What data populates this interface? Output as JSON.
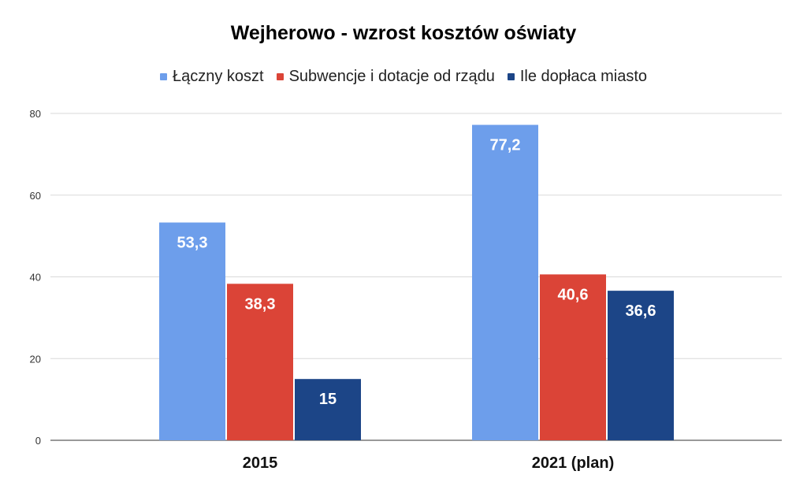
{
  "chart_data": {
    "type": "bar",
    "title": "Wejherowo - wzrost kosztów oświaty",
    "categories": [
      "2015",
      "2021 (plan)"
    ],
    "series": [
      {
        "name": "Łączny koszt",
        "values": [
          53.3,
          77.2
        ],
        "labels": [
          "53,3",
          "77,2"
        ],
        "color": "#6d9eeb"
      },
      {
        "name": "Subwencje i dotacje od rządu",
        "values": [
          38.3,
          40.6
        ],
        "labels": [
          "38,3",
          "40,6"
        ],
        "color": "#db4437"
      },
      {
        "name": "Ile dopłaca miasto",
        "values": [
          15,
          36.6
        ],
        "labels": [
          "15",
          "36,6"
        ],
        "color": "#1c4587"
      }
    ],
    "ylim": [
      0,
      80
    ],
    "yticks": [
      "0",
      "20",
      "40",
      "60",
      "80"
    ],
    "grid": true,
    "legend_position": "top",
    "xlabel": "",
    "ylabel": ""
  }
}
